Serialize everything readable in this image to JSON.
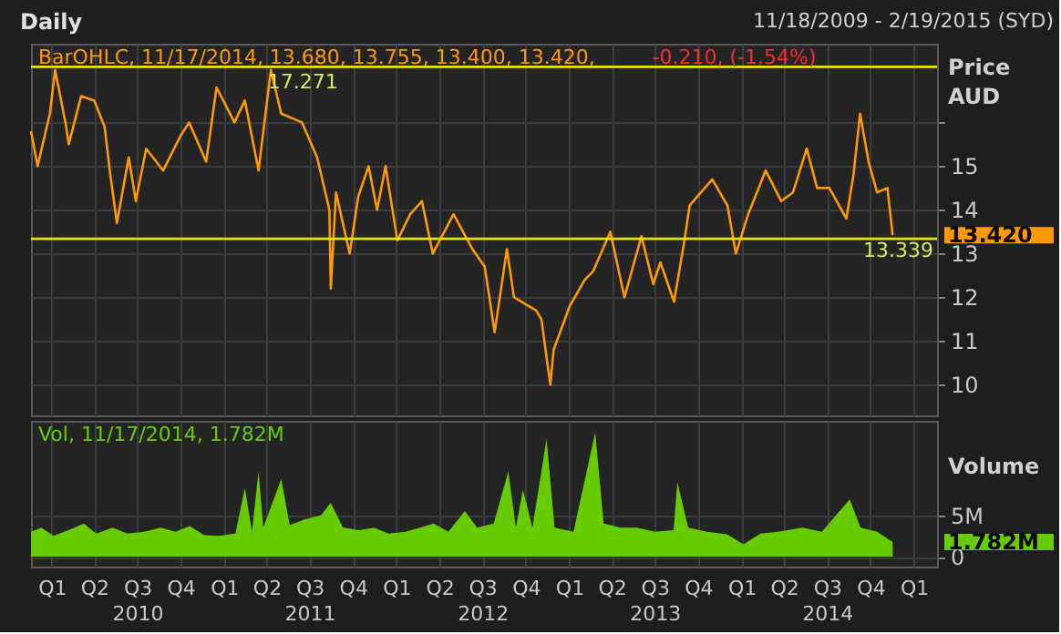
{
  "chart_data": [
    {
      "type": "line",
      "title": "Daily",
      "subtitle": "11/18/2009 - 2/19/2015 (SYD)",
      "ylabel": "Price AUD",
      "xlim": [
        "2009-11-18",
        "2015-02-19"
      ],
      "xticks": [
        {
          "value": "2010-01-01",
          "label": null
        },
        {
          "value": "2010-04-01",
          "label": null
        },
        {
          "value": "2010-07-01",
          "label": null
        },
        {
          "value": "2010-10-01",
          "label": null
        },
        {
          "value": "2011-01-01",
          "label": null
        },
        {
          "value": "2011-04-01",
          "label": null
        },
        {
          "value": "2011-07-01",
          "label": null
        },
        {
          "value": "2011-10-01",
          "label": null
        },
        {
          "value": "2012-01-01",
          "label": null
        },
        {
          "value": "2012-04-01",
          "label": null
        },
        {
          "value": "2012-07-01",
          "label": null
        },
        {
          "value": "2012-10-01",
          "label": null
        },
        {
          "value": "2013-01-01",
          "label": null
        },
        {
          "value": "2013-04-01",
          "label": null
        },
        {
          "value": "2013-07-01",
          "label": null
        },
        {
          "value": "2013-10-01",
          "label": null
        },
        {
          "value": "2014-01-01",
          "label": null
        },
        {
          "value": "2014-04-01",
          "label": null
        },
        {
          "value": "2014-07-01",
          "label": null
        },
        {
          "value": "2014-10-01",
          "label": null
        },
        {
          "value": "2015-01-01",
          "label": null
        }
      ],
      "ylim": [
        9.3,
        17.8
      ],
      "yticks": [
        10,
        11,
        12,
        13,
        14,
        15,
        {
          "value": 16,
          "label": null
        }
      ],
      "grid": true,
      "tick_labels": "y",
      "ref_lines": [
        {
          "axis": "y",
          "value": 17.271,
          "label": "17.271",
          "color": "#e6e600"
        },
        {
          "axis": "y",
          "value": 13.339,
          "label": "13.339",
          "color": "#e6e600"
        }
      ],
      "annotations": [
        "BarOHLC, 11/17/2014, 13.680, 13.755, 13.400, 13.420,",
        "-0.210, (-1.54%)",
        "13.420"
      ],
      "series": [
        {
          "color": "#ff9900",
          "x": [
            "2009-11-18",
            "2009-12-02",
            "2009-12-28",
            "2010-01-08",
            "2010-01-30",
            "2010-02-06",
            "2010-03-04",
            "2010-04-01",
            "2010-04-23",
            "2010-05-05",
            "2010-05-19",
            "2010-06-13",
            "2010-06-28",
            "2010-07-20",
            "2010-08-25",
            "2010-10-01",
            "2010-10-19",
            "2010-11-24",
            "2010-12-16",
            "2011-01-23",
            "2011-02-14",
            "2011-03-15",
            "2011-04-10",
            "2011-05-02",
            "2011-06-15",
            "2011-07-17",
            "2011-08-12",
            "2011-08-15",
            "2011-08-26",
            "2011-09-24",
            "2011-10-12",
            "2011-11-03",
            "2011-11-21",
            "2011-12-09",
            "2012-01-03",
            "2012-01-30",
            "2012-02-24",
            "2012-03-18",
            "2012-05-01",
            "2012-06-10",
            "2012-07-06",
            "2012-07-27",
            "2012-08-22",
            "2012-09-06",
            "2012-10-23",
            "2012-11-03",
            "2012-11-22",
            "2012-11-29",
            "2013-01-02",
            "2013-02-03",
            "2013-02-21",
            "2013-03-29",
            "2013-04-28",
            "2013-06-03",
            "2013-06-28",
            "2013-07-13",
            "2013-08-11",
            "2013-09-02",
            "2013-09-13",
            "2013-10-31",
            "2013-12-02",
            "2013-12-20",
            "2014-01-15",
            "2014-02-21",
            "2014-03-26",
            "2014-04-20",
            "2014-05-19",
            "2014-06-10",
            "2014-07-06",
            "2014-08-11",
            "2014-08-26",
            "2014-09-09",
            "2014-09-27",
            "2014-10-15",
            "2014-11-06",
            "2014-11-17"
          ],
          "values": [
            15.8,
            15.0,
            16.2,
            17.2,
            16.0,
            15.5,
            16.6,
            16.5,
            15.9,
            14.8,
            13.7,
            15.2,
            14.2,
            15.4,
            14.9,
            15.7,
            16.0,
            15.1,
            16.8,
            16.0,
            16.5,
            14.9,
            17.2,
            16.2,
            16.0,
            15.2,
            14.0,
            12.2,
            14.4,
            13.0,
            14.3,
            15.0,
            14.0,
            15.0,
            13.3,
            13.9,
            14.2,
            13.0,
            13.9,
            13.1,
            12.7,
            11.2,
            13.1,
            12.0,
            11.7,
            11.5,
            10.0,
            10.8,
            11.8,
            12.4,
            12.6,
            13.5,
            12.0,
            13.4,
            12.3,
            12.8,
            11.9,
            13.3,
            14.1,
            14.7,
            14.1,
            13.0,
            13.9,
            14.9,
            14.2,
            14.4,
            15.4,
            14.5,
            14.5,
            13.8,
            14.8,
            16.2,
            15.1,
            14.4,
            14.5,
            13.42
          ]
        }
      ]
    },
    {
      "type": "area",
      "ylabel": "Volume",
      "xlim": [
        "2009-11-18",
        "2015-02-19"
      ],
      "xticks": [
        {
          "value": "2010-01-01",
          "label": "Q1"
        },
        {
          "value": "2010-04-01",
          "label": "Q2"
        },
        {
          "value": "2010-07-01",
          "label": "Q3\n2010"
        },
        {
          "value": "2010-10-01",
          "label": "Q4"
        },
        {
          "value": "2011-01-01",
          "label": "Q1"
        },
        {
          "value": "2011-04-01",
          "label": "Q2"
        },
        {
          "value": "2011-07-01",
          "label": "Q3\n2011"
        },
        {
          "value": "2011-10-01",
          "label": "Q4"
        },
        {
          "value": "2012-01-01",
          "label": "Q1"
        },
        {
          "value": "2012-04-01",
          "label": "Q2"
        },
        {
          "value": "2012-07-01",
          "label": "Q3\n2012"
        },
        {
          "value": "2012-10-01",
          "label": "Q4"
        },
        {
          "value": "2013-01-01",
          "label": "Q1"
        },
        {
          "value": "2013-04-01",
          "label": "Q2"
        },
        {
          "value": "2013-07-01",
          "label": "Q3\n2013"
        },
        {
          "value": "2013-10-01",
          "label": "Q4"
        },
        {
          "value": "2014-01-01",
          "label": "Q1"
        },
        {
          "value": "2014-04-01",
          "label": "Q2"
        },
        {
          "value": "2014-07-01",
          "label": "Q3\n2014"
        },
        {
          "value": "2014-10-01",
          "label": "Q4"
        },
        {
          "value": "2015-01-01",
          "label": "Q1"
        }
      ],
      "ylim": [
        -1.2,
        16.4
      ],
      "yticks": [
        0,
        {
          "value": 5,
          "label": "5M"
        }
      ],
      "grid": true,
      "annotations": [
        "Vol, 11/17/2014, 1.782M",
        "1.782M"
      ],
      "series": [
        {
          "color": "#66cc00",
          "x": [
            "2009-11-18",
            "2009-12-10",
            "2010-01-05",
            "2010-02-10",
            "2010-03-10",
            "2010-04-05",
            "2010-05-10",
            "2010-06-10",
            "2010-07-15",
            "2010-08-20",
            "2010-09-20",
            "2010-10-20",
            "2010-11-20",
            "2010-12-20",
            "2011-01-25",
            "2011-02-14",
            "2011-03-01",
            "2011-03-15",
            "2011-03-25",
            "2011-05-02",
            "2011-05-20",
            "2011-06-20",
            "2011-07-25",
            "2011-08-15",
            "2011-09-10",
            "2011-10-15",
            "2011-11-15",
            "2011-12-15",
            "2012-01-20",
            "2012-02-20",
            "2012-03-20",
            "2012-04-20",
            "2012-05-25",
            "2012-06-20",
            "2012-07-25",
            "2012-08-25",
            "2012-09-10",
            "2012-09-25",
            "2012-10-15",
            "2012-11-14",
            "2012-12-01",
            "2013-01-10",
            "2013-02-25",
            "2013-03-15",
            "2013-04-20",
            "2013-05-25",
            "2013-07-01",
            "2013-08-10",
            "2013-08-18",
            "2013-09-10",
            "2013-10-20",
            "2013-12-01",
            "2014-01-05",
            "2014-02-10",
            "2014-03-20",
            "2014-05-10",
            "2014-06-20",
            "2014-08-18",
            "2014-09-10",
            "2014-10-15",
            "2014-11-17"
          ],
          "values": [
            3.0,
            3.5,
            2.5,
            3.3,
            4.0,
            2.8,
            3.5,
            2.8,
            3.0,
            3.5,
            3.0,
            3.7,
            2.6,
            2.5,
            2.8,
            8.3,
            3.0,
            10.3,
            3.5,
            9.4,
            3.8,
            4.5,
            5.0,
            6.5,
            3.5,
            3.2,
            3.5,
            2.8,
            3.0,
            3.5,
            4.0,
            3.0,
            5.5,
            3.5,
            4.0,
            10.3,
            3.5,
            8.1,
            3.5,
            14.2,
            3.5,
            3.0,
            15.0,
            4.0,
            3.5,
            3.5,
            3.0,
            3.2,
            9.0,
            3.5,
            3.0,
            2.7,
            1.5,
            2.8,
            3.0,
            3.5,
            3.0,
            6.9,
            3.5,
            3.0,
            1.782
          ]
        }
      ]
    }
  ]
}
